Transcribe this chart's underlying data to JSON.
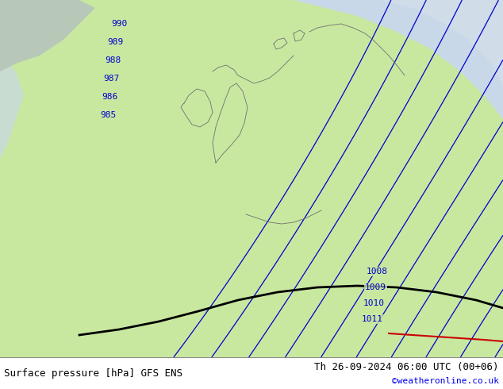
{
  "title_left": "Surface pressure [hPa] GFS ENS",
  "title_right": "Th 26-09-2024 06:00 UTC (00+06)",
  "credit": "©weatheronline.co.uk",
  "land_color": "#c8e8a0",
  "sea_color": "#c8d8e8",
  "grey_land_color": "#c0c8c0",
  "contour_color": "#0000cc",
  "black_line_color": "#000000",
  "red_line_color": "#cc0000",
  "coast_color": "#707070",
  "pressure_labels_left": [
    "990",
    "989",
    "988",
    "987",
    "986",
    "985"
  ],
  "pressure_labels_right": [
    "1008",
    "1009",
    "1010",
    "1011"
  ],
  "fig_width": 6.34,
  "fig_height": 4.9,
  "dpi": 100,
  "text_color_black": "#000000",
  "credit_color": "#0000ee",
  "font_size_bottom": 9,
  "font_size_labels": 8
}
